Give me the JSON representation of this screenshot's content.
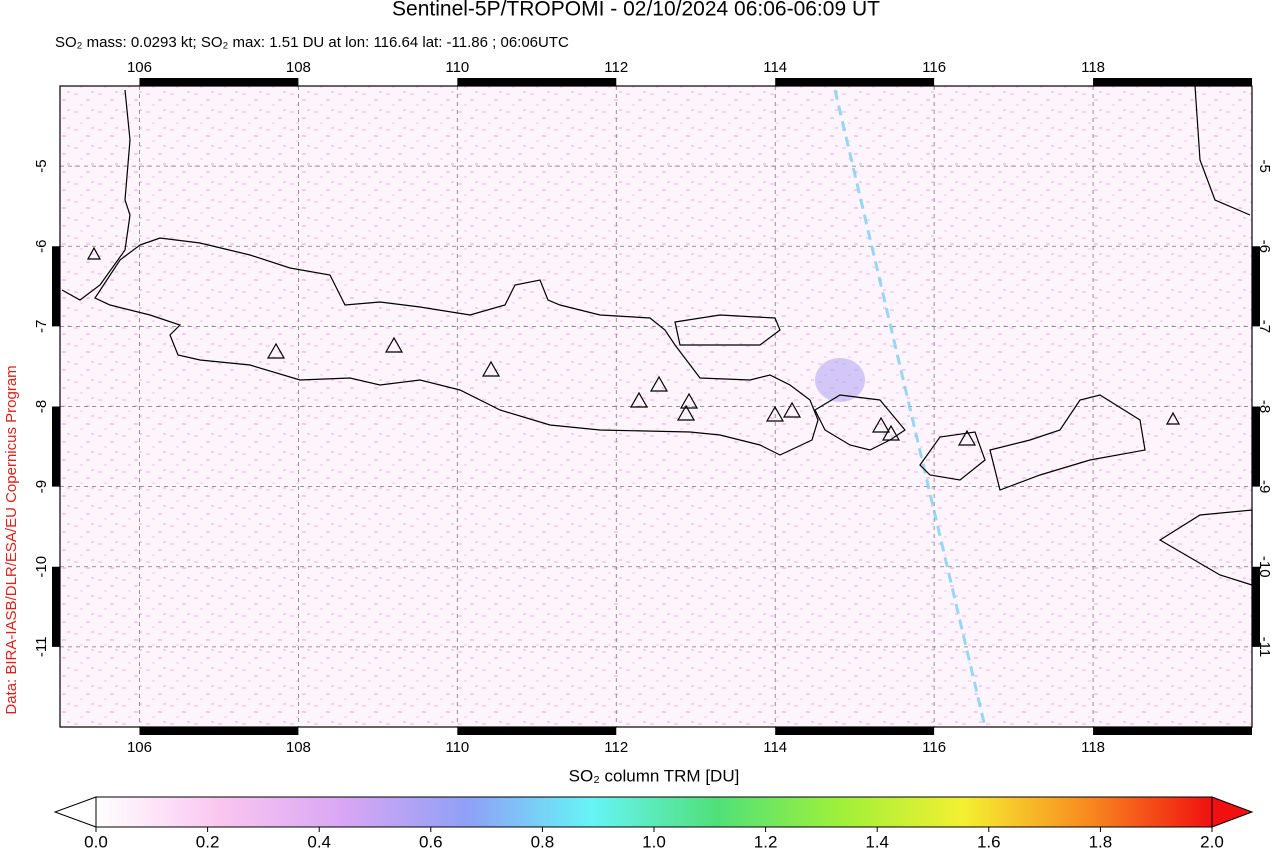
{
  "map": {
    "title": "Sentinel-5P/TROPOMI - 02/10/2024 06:06-06:09 UT",
    "subtitle": "SO₂ mass: 0.0293 kt; SO₂ max: 1.51 DU at lon: 116.64 lat: -11.86 ; 06:06UTC",
    "credit": "Data: BIRA-IASB/DLR/ESA/EU Copernicus Program",
    "xlim": [
      105,
      120
    ],
    "ylim": [
      -12,
      -4
    ],
    "xticks": [
      106,
      108,
      110,
      112,
      114,
      116,
      118
    ],
    "yticks": [
      -5,
      -6,
      -7,
      -8,
      -9,
      -10,
      -11
    ],
    "grid": true,
    "colorbar": {
      "label": "SO₂ column TRM [DU]",
      "lim": [
        0,
        2
      ],
      "ticks": [
        {
          "value": 0,
          "label": "0.0"
        },
        {
          "value": 0.2,
          "label": "0.2"
        },
        {
          "value": 0.4,
          "label": "0.4"
        },
        {
          "value": 0.6,
          "label": "0.6"
        },
        {
          "value": 0.8,
          "label": "0.8"
        },
        {
          "value": 1,
          "label": "1.0"
        },
        {
          "value": 1.2,
          "label": "1.2"
        },
        {
          "value": 1.4,
          "label": "1.4"
        },
        {
          "value": 1.6,
          "label": "1.6"
        },
        {
          "value": 1.8,
          "label": "1.8"
        },
        {
          "value": 2,
          "label": "2.0"
        }
      ],
      "colors": [
        "#ffffff",
        "#f9c6f0",
        "#d9a6f4",
        "#8fa0f6",
        "#66f4f6",
        "#4fe07a",
        "#9ef03a",
        "#f4f030",
        "#f88a20",
        "#f01010"
      ]
    }
  }
}
